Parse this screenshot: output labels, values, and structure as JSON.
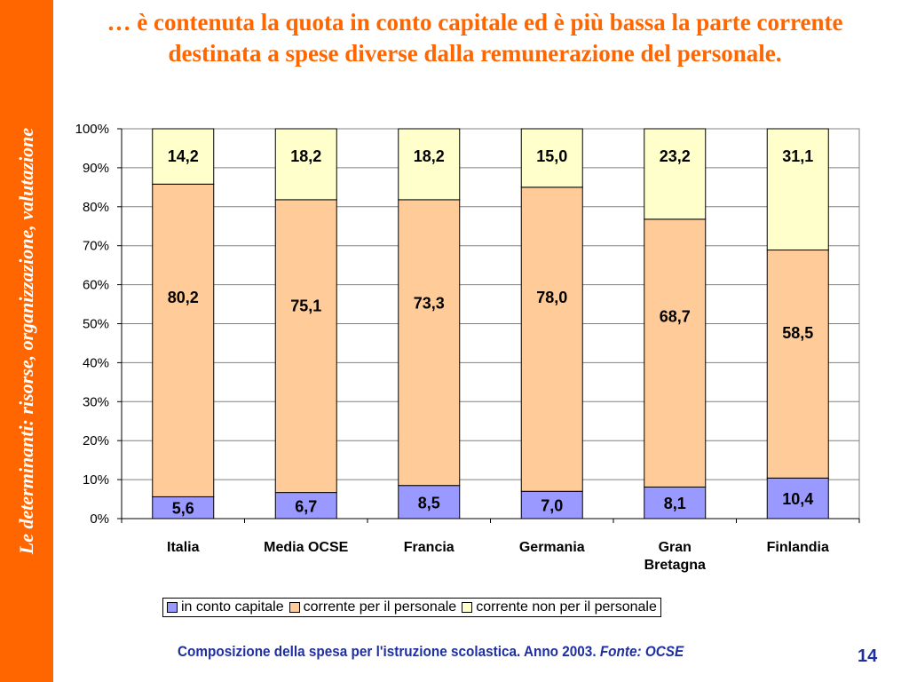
{
  "sidebar": {
    "text": "Le determinanti: risorse, organizzazione, valutazione"
  },
  "title": "… è contenuta la quota in conto capitale ed è più bassa la parte corrente destinata a spese diverse dalla remunerazione del personale.",
  "caption": {
    "main": "Composizione della spesa per l'istruzione scolastica. Anno 2003.",
    "source": "Fonte: OCSE"
  },
  "page_number": "14",
  "colors": {
    "accent": "#ff6600",
    "caption": "#1f2fa0",
    "series": [
      "#9999ff",
      "#ffcc99",
      "#ffffcc"
    ]
  },
  "chart_data": {
    "type": "bar",
    "stacked": true,
    "percent": true,
    "categories": [
      "Italia",
      "Media OCSE",
      "Francia",
      "Germania",
      "Gran Bretagna",
      "Finlandia"
    ],
    "category_lines": [
      [
        "Italia"
      ],
      [
        "Media OCSE"
      ],
      [
        "Francia"
      ],
      [
        "Germania"
      ],
      [
        "Gran",
        "Bretagna"
      ],
      [
        "Finlandia"
      ]
    ],
    "series": [
      {
        "name": "in conto capitale",
        "values": [
          5.6,
          6.7,
          8.5,
          7.0,
          8.1,
          10.4
        ],
        "labels": [
          "5,6",
          "6,7",
          "8,5",
          "7,0",
          "8,1",
          "10,4"
        ]
      },
      {
        "name": "corrente per il personale",
        "values": [
          80.2,
          75.1,
          73.3,
          78.0,
          68.7,
          58.5
        ],
        "labels": [
          "80,2",
          "75,1",
          "73,3",
          "78,0",
          "68,7",
          "58,5"
        ]
      },
      {
        "name": "corrente non per il personale",
        "values": [
          14.2,
          18.2,
          18.2,
          15.0,
          23.2,
          31.1
        ],
        "labels": [
          "14,2",
          "18,2",
          "18,2",
          "15,0",
          "23,2",
          "31,1"
        ]
      }
    ],
    "y_ticks": [
      "0%",
      "10%",
      "20%",
      "30%",
      "40%",
      "50%",
      "60%",
      "70%",
      "80%",
      "90%",
      "100%"
    ],
    "ylim": [
      0,
      100
    ],
    "grid": true,
    "legend": "bottom"
  }
}
